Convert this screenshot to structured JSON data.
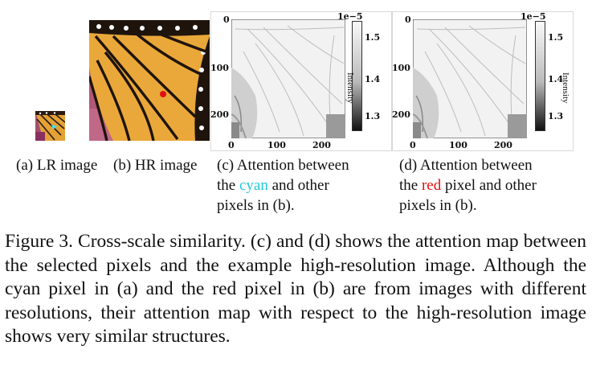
{
  "panels": {
    "a": {
      "label": "(a) LR image"
    },
    "b": {
      "label": "(b) HR image"
    },
    "c": {
      "line1": "(c) Attention between",
      "line2_prefix": "the ",
      "highlight": "cyan",
      "line2_suffix": " and other",
      "line3": "pixels in (b).",
      "scale": "1e−5",
      "colorbar_label": "Intensity",
      "colorbar_ticks": [
        "1.5",
        "1.4",
        "1.3"
      ],
      "y_ticks": [
        "0",
        "100",
        "200"
      ],
      "x_ticks": [
        "0",
        "100",
        "200"
      ]
    },
    "d": {
      "line1": "(d) Attention between",
      "line2_prefix": "the ",
      "highlight": "red",
      "line2_suffix": " pixel and other",
      "line3": "pixels in (b).",
      "scale": "1e−5",
      "colorbar_label": "Intensity",
      "colorbar_ticks": [
        "1.5",
        "1.4",
        "1.3"
      ],
      "y_ticks": [
        "0",
        "100",
        "200"
      ],
      "x_ticks": [
        "0",
        "100",
        "200"
      ]
    }
  },
  "caption": "Figure 3. Cross-scale similarity. (c) and (d) shows the attention map between the selected pixels and the example high-resolution image. Although the cyan pixel in (a) and the red pixel in (b) are from images with different resolutions, their attention map with respect to the high-resolution image shows very similar structures.",
  "colors": {
    "cyan": "#22c8d6",
    "red": "#e01010",
    "butterfly_orange": "#e8a030",
    "background_pink": "#b05878"
  }
}
